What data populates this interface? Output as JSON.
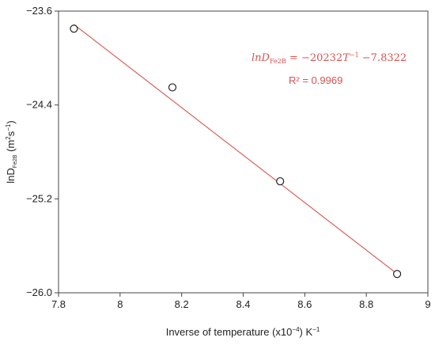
{
  "chart_data": {
    "type": "scatter",
    "x": [
      7.85,
      8.17,
      8.52,
      8.9
    ],
    "y": [
      -23.75,
      -24.25,
      -25.05,
      -25.84
    ],
    "xlim": [
      7.8,
      9.0
    ],
    "ylim": [
      -26.0,
      -23.6
    ],
    "xticks": [
      "7.8",
      "8",
      "8.2",
      "8.4",
      "8.6",
      "8.8",
      "9"
    ],
    "yticks": [
      "-23.6",
      "-24.4",
      "-25.2",
      "-26.0"
    ],
    "xlabel": {
      "main": "Inverse of temperature (x10",
      "exp": "−4",
      "post": ") K",
      "post_exp": "−1"
    },
    "ylabel": {
      "ln": "lnD",
      "sub": "Fe2B",
      "open": " (m",
      "sup1": "2",
      "mid": "s",
      "sup2": "−1",
      "close": ")"
    },
    "fit": {
      "slope_per_1e4": -2.0232,
      "intercept": -7.8322,
      "equation_lhs": "lnD",
      "equation_sub": "Fe2B",
      "equation_rhs": " = −20232",
      "equation_var": "T",
      "equation_exp": "−1",
      "equation_tail": " −7.8322",
      "r2_text": "R² = 0.9969"
    },
    "grid": false,
    "colors": {
      "fit_line": "#d9534f",
      "annotation": "#d9534f",
      "marker_edge": "#222222",
      "axis": "#444444"
    }
  }
}
